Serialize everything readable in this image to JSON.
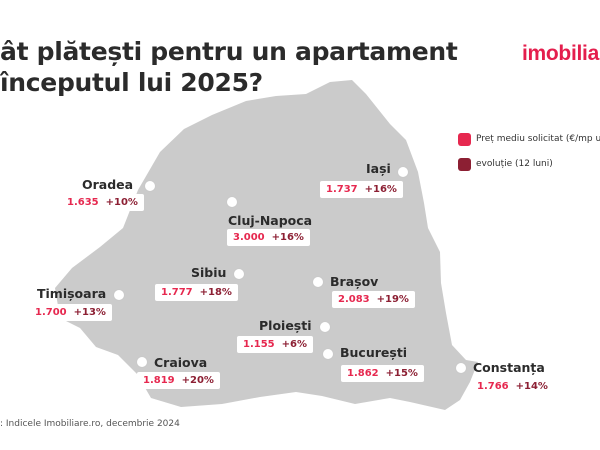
{
  "title": {
    "line1": "ât plătești pentru un apartament",
    "line2": "începutul lui 2025?"
  },
  "brand": "imobilia",
  "legend": {
    "items": [
      {
        "label": "Preț mediu solicitat (€/mp u",
        "color": "#e6284f"
      },
      {
        "label": "evoluție (12 luni)",
        "color": "#8c1f33"
      }
    ]
  },
  "cities": [
    {
      "name": "Oradea",
      "price": "1.635",
      "change": "+10%"
    },
    {
      "name": "Iași",
      "price": "1.737",
      "change": "+16%"
    },
    {
      "name": "Cluj-Napoca",
      "price": "3.000",
      "change": "+16%"
    },
    {
      "name": "Sibiu",
      "price": "1.777",
      "change": "+18%"
    },
    {
      "name": "Brașov",
      "price": "2.083",
      "change": "+19%"
    },
    {
      "name": "Timișoara",
      "price": "1.700",
      "change": "+13%"
    },
    {
      "name": "Ploiești",
      "price": "1.155",
      "change": "+6%"
    },
    {
      "name": "Craiova",
      "price": "1.819",
      "change": "+20%"
    },
    {
      "name": "București",
      "price": "1.862",
      "change": "+15%"
    },
    {
      "name": "Constanța",
      "price": "1.766",
      "change": "+14%"
    }
  ],
  "source": ": Indicele Imobiliare.ro, decembrie 2024",
  "colors": {
    "map_fill": "#cbcbcb",
    "price": "#e6284f",
    "change": "#8c1f33",
    "brand": "#e41e4d"
  }
}
